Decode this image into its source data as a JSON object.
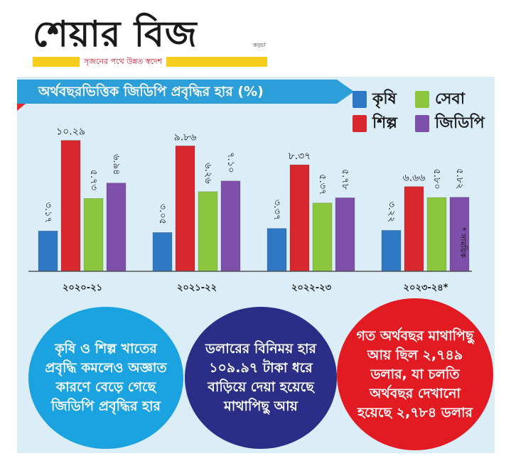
{
  "masthead": {
    "logo": "শেয়ার বিজ",
    "logo_suffix": "কড়চা",
    "tagline": "সৃজনের পথে উন্নত স্বদেশ"
  },
  "chart_data": {
    "type": "bar",
    "title": "অর্থবছরভিত্তিক জিডিপি প্রবৃদ্ধির হার (%)",
    "categories": [
      "২০২০-২১",
      "২০২১-২২",
      "২০২২-২৩",
      "২০২৩-২৪*"
    ],
    "series": [
      {
        "name": "কৃষি",
        "color": "#2f78c4",
        "values": [
          3.17,
          3.05,
          3.37,
          3.22
        ],
        "labels": [
          "৩.১৭",
          "৩.০৫",
          "৩.৩৭",
          "৩.২২"
        ]
      },
      {
        "name": "শিল্প",
        "color": "#d9272e",
        "values": [
          10.29,
          9.86,
          8.37,
          6.66
        ],
        "labels": [
          "১০.২৯",
          "৯.৮৬",
          "৮.৩৭",
          "৬.৬৬"
        ]
      },
      {
        "name": "সেবা",
        "color": "#8cc63f",
        "values": [
          5.73,
          6.26,
          5.37,
          5.8
        ],
        "labels": [
          "৫.৭৩",
          "৬.২৬",
          "৫.৩৭",
          "৫.৮০"
        ]
      },
      {
        "name": "জিডিপি",
        "color": "#7e4fa8",
        "values": [
          6.94,
          7.1,
          5.78,
          5.82
        ],
        "labels": [
          "৬.৯৪",
          "৭.১০",
          "৫.৭৮",
          "৫.৮২"
        ]
      }
    ],
    "legend_position": "top-right",
    "ylim": [
      0,
      11.5
    ],
    "grid": false,
    "footnote": "* সাময়িক"
  },
  "bubbles": [
    {
      "text": "কৃষি ও শিল্প খাতের প্রবৃদ্ধি কমলেও অজ্ঞাত কারণে বেড়ে গেছে জিডিপি প্রবৃদ্ধির হার",
      "color": "#1aa3e0"
    },
    {
      "text": "ডলারের বিনিময় হার ১০৯.৯৭ টাকা ধরে বাড়িয়ে দেয়া হয়েছে মাথাপিছু আয়",
      "color": "#2a2e86"
    },
    {
      "text": "গত অর্থবছর মাথাপিছু আয় ছিল ২,৭৪৯ ডলার, যা চলতি অর্থবছর দেখানো হয়েছে ২,৭৮৪ ডলার",
      "color": "#e21b23"
    }
  ]
}
